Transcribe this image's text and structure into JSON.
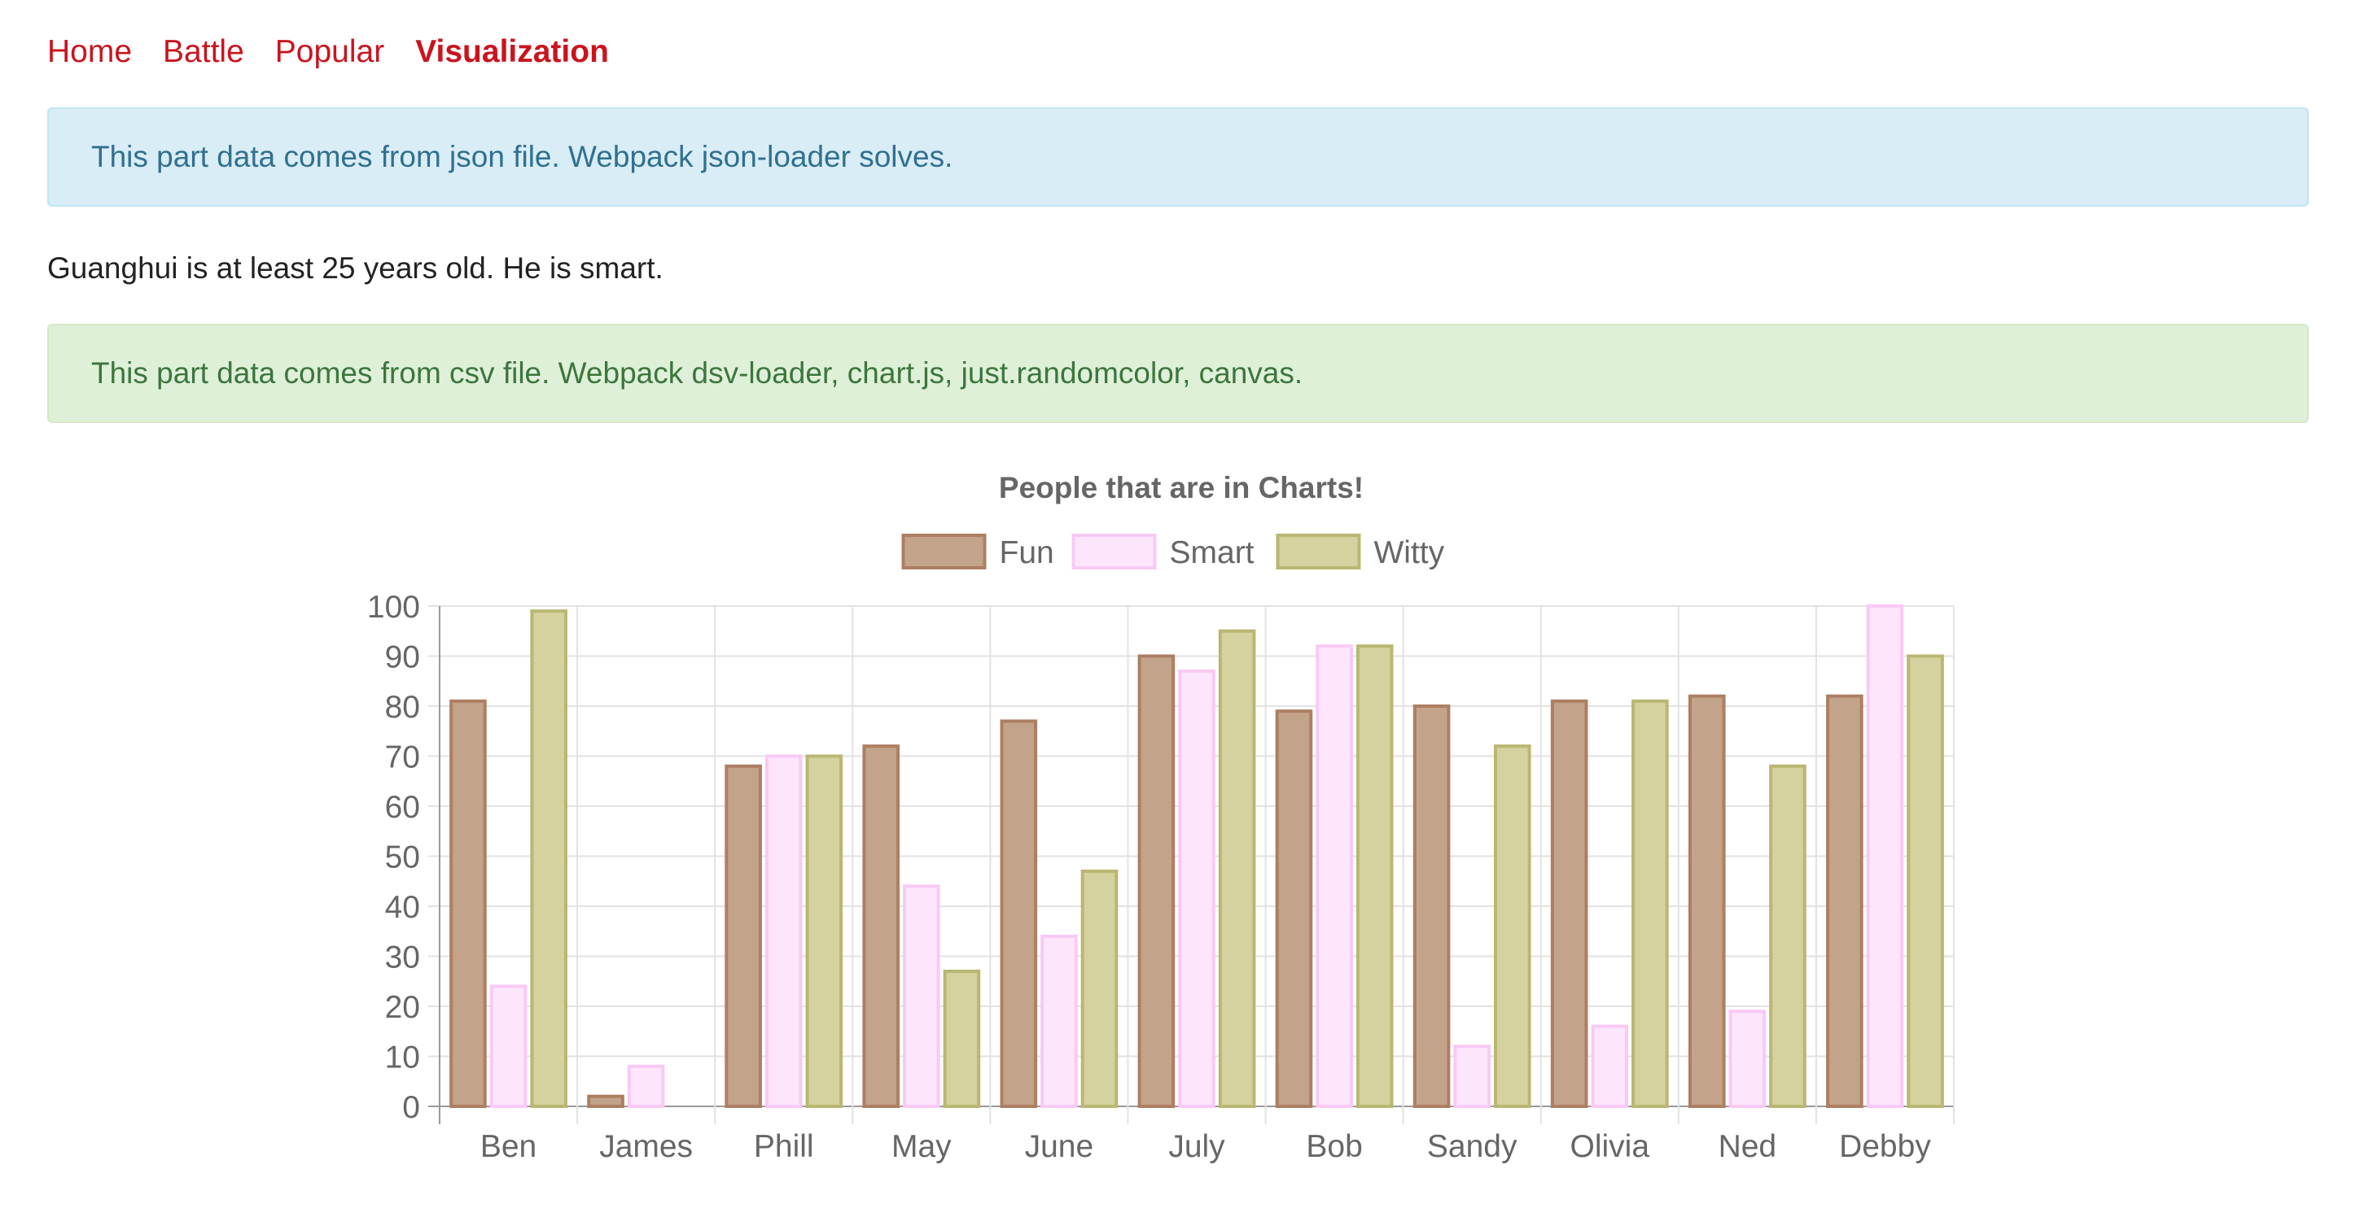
{
  "nav": {
    "items": [
      {
        "label": "Home",
        "active": false
      },
      {
        "label": "Battle",
        "active": false
      },
      {
        "label": "Popular",
        "active": false
      },
      {
        "label": "Visualization",
        "active": true
      }
    ]
  },
  "info_alert": {
    "text": "This part data comes from json file. Webpack json-loader solves."
  },
  "sentence": "Guanghui is at least 25 years old. He is smart.",
  "success_alert": {
    "text": "This part data comes from csv file. Webpack dsv-loader, chart.js, just.randomcolor, canvas."
  },
  "colors": {
    "link": "#c9141e",
    "info_bg": "#d9edf7",
    "info_text": "#31708f",
    "success_bg": "#dff0d8",
    "success_text": "#3c763d"
  },
  "chart_data": {
    "type": "bar",
    "title": "People that are in Charts!",
    "categories": [
      "Ben",
      "James",
      "Phill",
      "May",
      "June",
      "July",
      "Bob",
      "Sandy",
      "Olivia",
      "Ned",
      "Debby"
    ],
    "series": [
      {
        "name": "Fun",
        "fill": "#c4a38b",
        "stroke": "#ad7f62",
        "values": [
          81,
          2,
          68,
          72,
          77,
          90,
          79,
          80,
          81,
          82,
          82
        ]
      },
      {
        "name": "Smart",
        "fill": "#fde6fc",
        "stroke": "#f9c9f5",
        "values": [
          24,
          8,
          70,
          44,
          34,
          87,
          92,
          12,
          16,
          19,
          100
        ]
      },
      {
        "name": "Witty",
        "fill": "#d4d39f",
        "stroke": "#b9b772",
        "values": [
          99,
          0,
          70,
          27,
          47,
          95,
          92,
          72,
          81,
          68,
          90
        ]
      }
    ],
    "ylim": [
      0,
      100
    ],
    "yticks": [
      "0",
      "10",
      "20",
      "30",
      "40",
      "50",
      "60",
      "70",
      "80",
      "90",
      "100"
    ],
    "grid": true,
    "legend": "top"
  }
}
